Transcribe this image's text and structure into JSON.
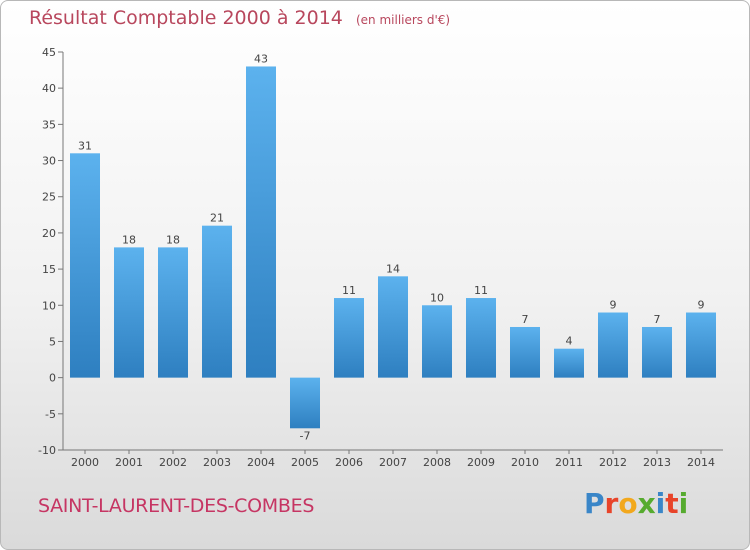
{
  "title": "Résultat Comptable 2000 à 2014",
  "unit": "(en milliers d'€)",
  "place": "SAINT-LAURENT-DES-COMBES",
  "logo": {
    "text": "Proxiti",
    "colors": [
      "#3a86c8",
      "#e8442a",
      "#f2a81d",
      "#56ab2f",
      "#3a86c8",
      "#e8442a",
      "#56ab2f"
    ]
  },
  "colors": {
    "bar_top": "#5cb2ee",
    "bar_bottom": "#2e7fc0",
    "axis": "#777777",
    "text": "#444444",
    "title": "#b8475d"
  },
  "chart_data": {
    "type": "bar",
    "title": "Résultat Comptable 2000 à 2014",
    "xlabel": "",
    "ylabel": "",
    "categories": [
      "2000",
      "2001",
      "2002",
      "2003",
      "2004",
      "2005",
      "2006",
      "2007",
      "2008",
      "2009",
      "2010",
      "2011",
      "2012",
      "2013",
      "2014"
    ],
    "values": [
      31,
      18,
      18,
      21,
      43,
      -7,
      11,
      14,
      10,
      11,
      7,
      4,
      9,
      7,
      9
    ],
    "ylim": [
      -10,
      45
    ],
    "yticks": [
      -10,
      -5,
      0,
      5,
      10,
      15,
      20,
      25,
      30,
      35,
      40,
      45
    ],
    "grid": false
  }
}
